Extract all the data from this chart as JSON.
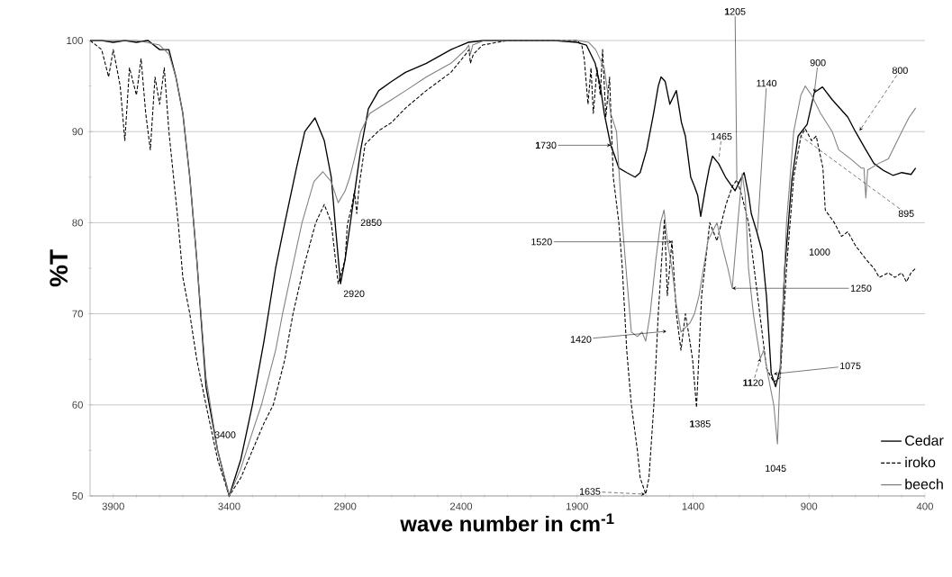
{
  "chart_data": {
    "type": "line",
    "xlabel": "wave number in cm$^{-1}$",
    "ylabel": "%T",
    "xlim": [
      4000,
      400
    ],
    "ylim": [
      50,
      100
    ],
    "xticks": [
      3900,
      3400,
      2900,
      2400,
      1900,
      1400,
      900,
      400
    ],
    "yticks": [
      50,
      60,
      70,
      80,
      90,
      100
    ],
    "grid": "y",
    "legend": "bottom right",
    "series": [
      {
        "name": "Cedar",
        "color": "#000000",
        "line_style": "solid",
        "x": [
          4000,
          3950,
          3900,
          3850,
          3800,
          3750,
          3700,
          3660,
          3630,
          3600,
          3570,
          3540,
          3500,
          3450,
          3400,
          3350,
          3300,
          3250,
          3200,
          3160,
          3110,
          3074,
          3030,
          2990,
          2960,
          2940,
          2920,
          2900,
          2872,
          2850,
          2833,
          2800,
          2755,
          2700,
          2640,
          2550,
          2444,
          2370,
          2300,
          2200,
          2100,
          2000,
          1900,
          1860,
          1822,
          1800,
          1783,
          1755,
          1740,
          1720,
          1686,
          1650,
          1628,
          1600,
          1570,
          1550,
          1538,
          1520,
          1500,
          1491,
          1472,
          1450,
          1433,
          1410,
          1394,
          1380,
          1367,
          1345,
          1330,
          1316,
          1290,
          1260,
          1219,
          1200,
          1180,
          1160,
          1149,
          1125,
          1102,
          1083,
          1063,
          1044,
          1024,
          1005,
          974,
          947,
          908,
          877,
          842,
          800,
          733,
          700,
          655,
          620,
          577,
          538,
          500,
          460,
          440
        ],
        "values": [
          100,
          100,
          99.8,
          100,
          99.8,
          100,
          99,
          99,
          96,
          92,
          85,
          76,
          62,
          55,
          50,
          54,
          60,
          67,
          75,
          80,
          86,
          90,
          91.5,
          89,
          85,
          79,
          73.3,
          76,
          81,
          85,
          88,
          92.5,
          94.5,
          95.5,
          96.5,
          97.5,
          99,
          99.8,
          100,
          100,
          100,
          100,
          99.8,
          99.5,
          97.5,
          95,
          92,
          88.5,
          87.5,
          86,
          85.5,
          85,
          85.5,
          88,
          92,
          95,
          96,
          95.5,
          93,
          93.5,
          94.5,
          91,
          89.5,
          85,
          84,
          83,
          80.7,
          84,
          86,
          87.3,
          86.5,
          85,
          83.5,
          84.5,
          85.5,
          83,
          81,
          79,
          76.8,
          71.8,
          63.5,
          62,
          64,
          74.8,
          84.7,
          89.5,
          90.8,
          94.3,
          94.9,
          93.5,
          91.6,
          90,
          88,
          86.5,
          85.7,
          85.2,
          85.5,
          85.3,
          86
        ]
      },
      {
        "name": "iroko",
        "color": "#000000",
        "line_style": "dashed",
        "x": [
          4000,
          3950,
          3920,
          3900,
          3870,
          3850,
          3830,
          3800,
          3780,
          3760,
          3740,
          3720,
          3700,
          3680,
          3660,
          3640,
          3620,
          3600,
          3570,
          3540,
          3500,
          3450,
          3400,
          3350,
          3300,
          3250,
          3210,
          3160,
          3125,
          3080,
          3027,
          2990,
          2960,
          2930,
          2900,
          2891,
          2870,
          2860,
          2850,
          2840,
          2814,
          2755,
          2700,
          2639,
          2550,
          2444,
          2380,
          2366,
          2360,
          2347,
          2308,
          2200,
          2100,
          2000,
          1900,
          1880,
          1869,
          1853,
          1840,
          1830,
          1814,
          1800,
          1790,
          1776,
          1760,
          1744,
          1720,
          1705,
          1686,
          1666,
          1640,
          1628,
          1604,
          1590,
          1569,
          1550,
          1530,
          1523,
          1511,
          1491,
          1472,
          1452,
          1433,
          1420,
          1402,
          1385,
          1363,
          1345,
          1328,
          1297,
          1258,
          1230,
          1211,
          1190,
          1161,
          1122,
          1083,
          1052,
          1024,
          997,
          966,
          935,
          916,
          889,
          869,
          840,
          830,
          791,
          760,
          733,
          700,
          655,
          620,
          597,
          558,
          530,
          500,
          480,
          460,
          440
        ],
        "values": [
          100,
          99,
          96,
          99,
          95,
          89,
          97,
          94,
          98,
          92,
          88,
          96,
          93,
          97,
          90,
          85,
          80,
          74,
          70,
          65,
          60,
          54,
          50,
          52,
          55,
          58,
          60,
          65,
          70,
          75,
          80,
          82,
          80,
          73.3,
          76,
          79.7,
          82,
          83.5,
          81,
          84,
          88.6,
          90.1,
          91,
          92.6,
          94.5,
          96.5,
          98.5,
          99,
          97.5,
          98.5,
          99.5,
          100,
          100,
          100,
          100,
          99.5,
          98,
          93,
          97,
          92,
          97,
          94,
          99,
          91.6,
          96,
          85,
          80,
          75,
          66,
          60,
          55,
          52,
          50.2,
          52,
          60,
          70,
          78,
          80.4,
          72,
          78,
          70,
          66,
          70,
          68,
          65,
          59.7,
          72,
          76,
          80,
          78,
          82,
          84,
          84.7,
          83,
          80,
          72,
          64,
          62.5,
          63,
          75,
          85,
          89.5,
          90.3,
          89,
          89.5,
          86,
          81.4,
          80,
          78.5,
          79,
          77.5,
          76,
          75,
          74,
          74.5,
          74,
          74.5,
          73.5,
          74.5,
          75
        ]
      },
      {
        "name": "beech",
        "color": "#808080",
        "line_style": "solid",
        "x": [
          4000,
          3900,
          3800,
          3700,
          3660,
          3630,
          3600,
          3570,
          3540,
          3500,
          3450,
          3400,
          3350,
          3300,
          3261,
          3200,
          3170,
          3120,
          3086,
          3035,
          2996,
          2960,
          2930,
          2900,
          2880,
          2860,
          2833,
          2794,
          2700,
          2639,
          2550,
          2444,
          2380,
          2367,
          2360,
          2350,
          2300,
          2100,
          1900,
          1850,
          1820,
          1783,
          1755,
          1730,
          1705,
          1686,
          1666,
          1640,
          1620,
          1604,
          1585,
          1560,
          1540,
          1525,
          1511,
          1491,
          1472,
          1452,
          1433,
          1413,
          1394,
          1374,
          1355,
          1336,
          1297,
          1270,
          1250,
          1231,
          1207,
          1188,
          1175,
          1161,
          1140,
          1122,
          1110,
          1095,
          1075,
          1052,
          1036,
          1024,
          997,
          966,
          935,
          916,
          889,
          850,
          800,
          772,
          720,
          675,
          663,
          655,
          647,
          600,
          558,
          500,
          470,
          440
        ],
        "values": [
          100,
          100,
          100,
          99.5,
          98.5,
          96,
          92,
          85,
          76,
          63,
          55,
          50,
          53,
          57,
          60,
          66,
          70,
          76,
          80,
          84.5,
          85.6,
          84.5,
          82.2,
          83.5,
          85,
          87,
          90,
          92,
          93.5,
          94.5,
          96,
          97.5,
          99,
          99.5,
          98.5,
          99.5,
          100,
          100,
          100,
          99.8,
          99,
          97,
          92,
          90,
          80,
          74,
          68,
          67.5,
          68,
          67,
          70,
          76,
          80,
          81.4,
          78,
          75,
          71,
          68,
          68.5,
          69,
          70,
          72,
          75,
          78,
          80,
          77,
          75,
          72.8,
          80,
          85.4,
          83,
          75,
          70,
          67,
          65.1,
          66,
          63,
          60,
          55.7,
          64,
          80,
          90,
          94,
          95,
          94,
          92,
          90,
          88,
          87,
          86,
          86,
          82.7,
          85.8,
          86.5,
          87,
          90,
          91.5,
          92.6
        ]
      }
    ],
    "annotations": [
      "3400",
      {
        "text": "2920",
        "x": 2920,
        "y": 73.3
      },
      {
        "text": "2850",
        "x": 2850,
        "y": 81
      },
      {
        "text": "**1**730",
        "x": 1755,
        "y": 88.5
      },
      {
        "text": "1520",
        "x": 1490,
        "y": 77.9
      },
      "1420",
      "1635",
      {
        "text": "1465",
        "x": 1289,
        "y": 86.9
      },
      {
        "text": "**1**205",
        "x": 1211,
        "y": 84.7
      },
      {
        "text": "1140",
        "x": 1122,
        "y": 79.1
      },
      {
        "text": "900",
        "x": 877,
        "y": 94.3
      },
      {
        "text": "800",
        "x": 682,
        "y": 90.1
      },
      {
        "text": "895",
        "x": 935,
        "y": 89.5
      },
      "1000",
      {
        "text": "1250",
        "x": 1231,
        "y": 72.8
      },
      {
        "text": "**11**20",
        "x": 1110,
        "y": 65.1
      },
      {
        "text": "1075",
        "x": 1052,
        "y": 63.4
      },
      {
        "text": "1045",
        "x": 1036,
        "y": 55.7
      },
      {
        "text": "**1**385",
        "x": 1385,
        "y": 59.7
      }
    ]
  }
}
